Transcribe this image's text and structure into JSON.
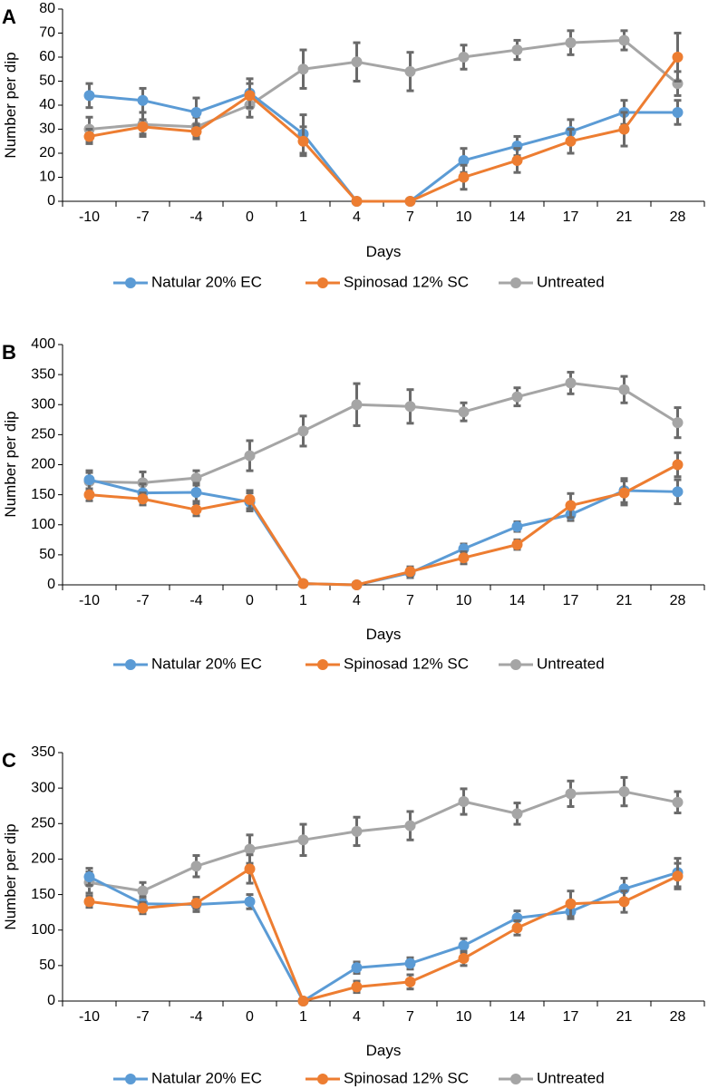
{
  "series_colors": {
    "Natular 20% EC": "#5b9bd5",
    "Spinosad 12% SC": "#ed7d31",
    "Untreated": "#a5a5a5"
  },
  "error_color": "#6a6a6a",
  "chart_data": [
    {
      "panel": "A",
      "type": "line",
      "xlabel": "Days",
      "ylabel": "Number per dip",
      "ylim": [
        0,
        80
      ],
      "yticks": [
        0,
        10,
        20,
        30,
        40,
        50,
        60,
        70,
        80
      ],
      "categories": [
        "-10",
        "-7",
        "-4",
        "0",
        "1",
        "4",
        "7",
        "10",
        "14",
        "17",
        "21",
        "28"
      ],
      "legend": [
        "Natular 20% EC",
        "Spinosad 12% SC",
        "Untreated"
      ],
      "series": [
        {
          "name": "Natular 20% EC",
          "values": [
            44,
            42,
            37,
            45,
            28,
            0,
            0,
            17,
            23,
            29,
            37,
            37
          ],
          "errors": [
            5,
            5,
            6,
            6,
            8,
            0,
            0,
            5,
            4,
            5,
            5,
            5
          ]
        },
        {
          "name": "Spinosad 12% SC",
          "values": [
            27,
            31,
            29,
            44,
            25,
            0,
            0,
            10,
            17,
            25,
            30,
            60
          ],
          "errors": [
            3,
            3,
            3,
            5,
            6,
            0,
            0,
            5,
            5,
            5,
            7,
            10
          ]
        },
        {
          "name": "Untreated",
          "values": [
            30,
            32,
            31,
            40,
            55,
            58,
            54,
            60,
            63,
            66,
            67,
            49
          ],
          "errors": [
            5,
            5,
            4,
            5,
            8,
            8,
            8,
            5,
            4,
            5,
            4,
            5
          ]
        }
      ]
    },
    {
      "panel": "B",
      "type": "line",
      "xlabel": "Days",
      "ylabel": "Number per dip",
      "ylim": [
        0,
        400
      ],
      "yticks": [
        0,
        50,
        100,
        150,
        200,
        250,
        300,
        350,
        400
      ],
      "categories": [
        "-10",
        "-7",
        "-4",
        "0",
        "1",
        "4",
        "7",
        "10",
        "14",
        "17",
        "21",
        "28"
      ],
      "legend": [
        "Natular 20% EC",
        "Spinosad 12% SC",
        "Untreated"
      ],
      "series": [
        {
          "name": "Natular 20% EC",
          "values": [
            175,
            153,
            154,
            138,
            2,
            0,
            20,
            60,
            97,
            117,
            157,
            155
          ],
          "errors": [
            15,
            15,
            15,
            15,
            2,
            0,
            8,
            8,
            8,
            10,
            20,
            20
          ]
        },
        {
          "name": "Spinosad 12% SC",
          "values": [
            150,
            143,
            125,
            142,
            2,
            0,
            22,
            45,
            67,
            132,
            153,
            200
          ],
          "errors": [
            10,
            10,
            10,
            15,
            2,
            0,
            8,
            10,
            8,
            20,
            20,
            20
          ]
        },
        {
          "name": "Untreated",
          "values": [
            172,
            170,
            178,
            215,
            256,
            300,
            297,
            288,
            313,
            336,
            325,
            270
          ],
          "errors": [
            15,
            18,
            12,
            25,
            25,
            35,
            28,
            15,
            15,
            18,
            22,
            25
          ]
        }
      ]
    },
    {
      "panel": "C",
      "type": "line",
      "xlabel": "Days",
      "ylabel": "Number per dip",
      "ylim": [
        0,
        350
      ],
      "yticks": [
        0,
        50,
        100,
        150,
        200,
        250,
        300,
        350
      ],
      "categories": [
        "-10",
        "-7",
        "-4",
        "0",
        "1",
        "4",
        "7",
        "10",
        "14",
        "17",
        "21",
        "28"
      ],
      "legend": [
        "Natular 20% EC",
        "Spinosad 12% SC",
        "Untreated"
      ],
      "series": [
        {
          "name": "Natular 20% EC",
          "values": [
            175,
            137,
            136,
            140,
            0,
            47,
            53,
            78,
            117,
            126,
            158,
            181
          ],
          "errors": [
            12,
            10,
            10,
            10,
            0,
            8,
            8,
            10,
            10,
            10,
            15,
            20
          ]
        },
        {
          "name": "Spinosad 12% SC",
          "values": [
            140,
            131,
            138,
            186,
            0,
            20,
            27,
            60,
            103,
            137,
            140,
            176
          ],
          "errors": [
            8,
            8,
            8,
            20,
            0,
            8,
            10,
            10,
            10,
            18,
            15,
            18
          ]
        },
        {
          "name": "Untreated",
          "values": [
            167,
            155,
            190,
            214,
            227,
            239,
            247,
            281,
            264,
            292,
            295,
            280
          ],
          "errors": [
            15,
            12,
            15,
            20,
            22,
            20,
            20,
            18,
            15,
            18,
            20,
            15
          ]
        }
      ]
    }
  ]
}
